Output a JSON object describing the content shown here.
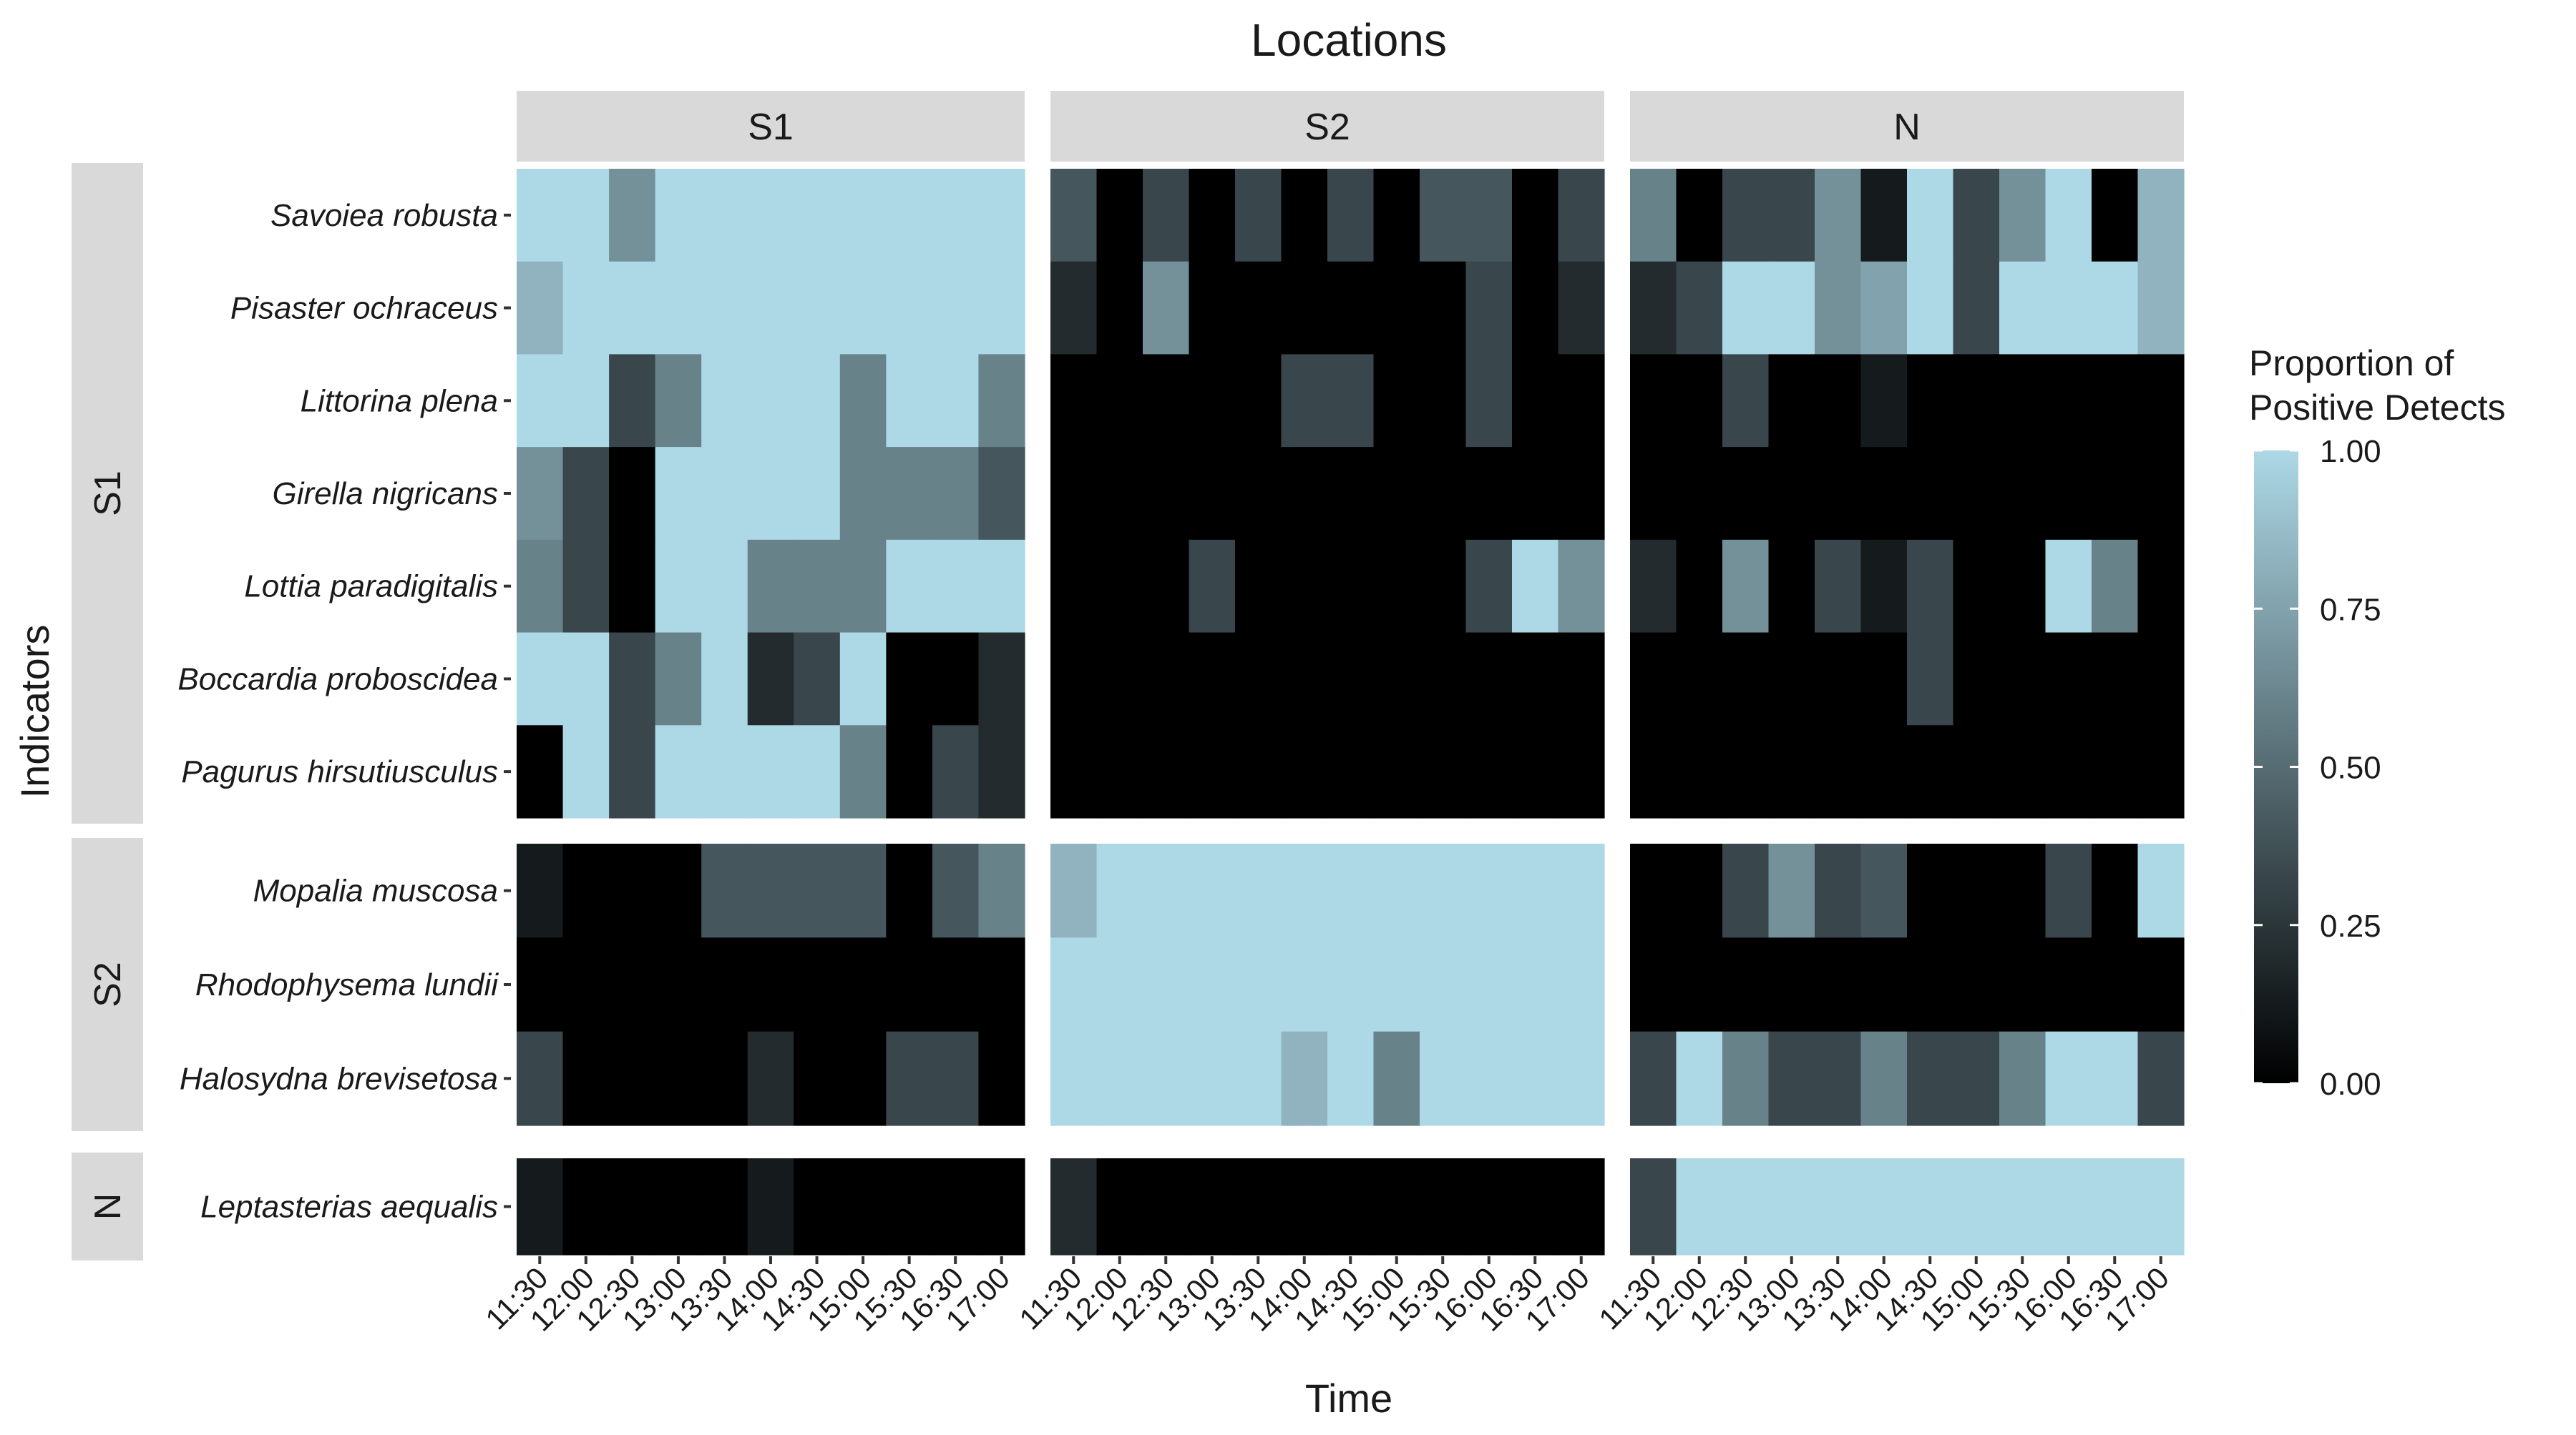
{
  "chart_data": {
    "type": "heatmap",
    "title": "Locations",
    "xlabel": "Time",
    "ylabel": "Indicators",
    "legend": {
      "title_lines": [
        "Proportion of",
        "Positive Detects"
      ],
      "range": [
        0,
        1
      ],
      "ticks": [
        "0.00",
        "0.25",
        "0.50",
        "0.75",
        "1.00"
      ],
      "position": "right",
      "low_color": "#000000",
      "high_color": "#add8e6"
    },
    "x_ticks": [
      "11:30",
      "12:00",
      "12:30",
      "13:00",
      "13:30",
      "14:00",
      "14:30",
      "15:00",
      "15:30",
      "16:00",
      "16:30",
      "17:00"
    ],
    "columns": [
      "S1",
      "S2",
      "N"
    ],
    "row_groups": [
      {
        "name": "S1",
        "rows": [
          "Savoiea robusta",
          "Pisaster ochraceus",
          "Littorina plena",
          "Girella nigricans",
          "Lottia paradigitalis",
          "Boccardia proboscidea",
          "Pagurus hirsutiusculus"
        ]
      },
      {
        "name": "S2",
        "rows": [
          "Mopalia muscosa",
          "Rhodophysema lundii",
          "Halosydna brevisetosa"
        ]
      },
      {
        "name": "N",
        "rows": [
          "Leptasterias aequalis"
        ]
      }
    ],
    "values": {
      "S1": {
        "Savoiea robusta": [
          1,
          1,
          0.67,
          1,
          1,
          1,
          1,
          1,
          1,
          1,
          1
        ],
        "Pisaster ochraceus": [
          0.83,
          1,
          1,
          1,
          1,
          1,
          1,
          1,
          1,
          1,
          1
        ],
        "Littorina plena": [
          1,
          1,
          0.33,
          0.6,
          1,
          1,
          1,
          0.6,
          1,
          1,
          0.6
        ],
        "Girella nigricans": [
          0.67,
          0.33,
          0,
          1,
          1,
          1,
          1,
          0.6,
          0.6,
          0.6,
          0.4
        ],
        "Lottia paradigitalis": [
          0.6,
          0.33,
          0,
          1,
          1,
          0.6,
          0.6,
          0.6,
          1,
          1,
          1
        ],
        "Boccardia proboscidea": [
          1,
          1,
          0.33,
          0.6,
          1,
          0.2,
          0.33,
          1,
          0,
          0,
          0.2
        ],
        "Pagurus hirsutiusculus": [
          0,
          1,
          0.33,
          1,
          1,
          1,
          1,
          0.6,
          0,
          0.33,
          0.2
        ],
        "Mopalia muscosa": [
          0.12,
          0,
          0,
          0,
          0.4,
          0.4,
          0.4,
          0.4,
          0,
          0.4,
          0.6
        ],
        "Rhodophysema lundii": [
          0,
          0,
          0,
          0,
          0,
          0,
          0,
          0,
          0,
          0,
          0
        ],
        "Halosydna brevisetosa": [
          0.33,
          0,
          0,
          0,
          0,
          0.2,
          0,
          0,
          0.33,
          0.33,
          0
        ],
        "Leptasterias aequalis": [
          0.12,
          0,
          0,
          0,
          0,
          0.12,
          0,
          0,
          0,
          0,
          0
        ]
      },
      "S2": {
        "Savoiea robusta": [
          0.4,
          0,
          0.33,
          0,
          0.33,
          0,
          0.33,
          0,
          0.4,
          0.4,
          0,
          0.33
        ],
        "Pisaster ochraceus": [
          0.2,
          0,
          0.67,
          0,
          0,
          0,
          0,
          0,
          0,
          0.33,
          0,
          0.2
        ],
        "Littorina plena": [
          0,
          0,
          0,
          0,
          0,
          0.33,
          0.33,
          0,
          0,
          0.33,
          0,
          0
        ],
        "Girella nigricans": [
          0,
          0,
          0,
          0,
          0,
          0,
          0,
          0,
          0,
          0,
          0,
          0
        ],
        "Lottia paradigitalis": [
          0,
          0,
          0,
          0.33,
          0,
          0,
          0,
          0,
          0,
          0.33,
          1,
          0.67
        ],
        "Boccardia proboscidea": [
          0,
          0,
          0,
          0,
          0,
          0,
          0,
          0,
          0,
          0,
          0,
          0
        ],
        "Pagurus hirsutiusculus": [
          0,
          0,
          0,
          0,
          0,
          0,
          0,
          0,
          0,
          0,
          0,
          0
        ],
        "Mopalia muscosa": [
          0.83,
          1,
          1,
          1,
          1,
          1,
          1,
          1,
          1,
          1,
          1,
          1
        ],
        "Rhodophysema lundii": [
          1,
          1,
          1,
          1,
          1,
          1,
          1,
          1,
          1,
          1,
          1,
          1
        ],
        "Halosydna brevisetosa": [
          1,
          1,
          1,
          1,
          1,
          0.83,
          1,
          0.6,
          1,
          1,
          1,
          1
        ],
        "Leptasterias aequalis": [
          0.2,
          0,
          0,
          0,
          0,
          0,
          0,
          0,
          0,
          0,
          0,
          0
        ]
      },
      "N": {
        "Savoiea robusta": [
          0.6,
          0,
          0.33,
          0.33,
          0.67,
          0.12,
          1,
          0.33,
          0.67,
          1,
          0,
          0.83
        ],
        "Pisaster ochraceus": [
          0.2,
          0.33,
          1,
          1,
          0.67,
          0.75,
          1,
          0.33,
          1,
          1,
          1,
          0.83
        ],
        "Littorina plena": [
          0,
          0,
          0.33,
          0,
          0,
          0.12,
          0,
          0,
          0,
          0,
          0,
          0
        ],
        "Girella nigricans": [
          0,
          0,
          0,
          0,
          0,
          0,
          0,
          0,
          0,
          0,
          0,
          0
        ],
        "Lottia paradigitalis": [
          0.2,
          0,
          0.67,
          0,
          0.33,
          0.12,
          0.33,
          0,
          0,
          1,
          0.6,
          0
        ],
        "Boccardia proboscidea": [
          0,
          0,
          0,
          0,
          0,
          0,
          0.33,
          0,
          0,
          0,
          0,
          0
        ],
        "Pagurus hirsutiusculus": [
          0,
          0,
          0,
          0,
          0,
          0,
          0,
          0,
          0,
          0,
          0,
          0
        ],
        "Mopalia muscosa": [
          0,
          0,
          0.33,
          0.67,
          0.33,
          0.4,
          0,
          0,
          0,
          0.33,
          0,
          1
        ],
        "Rhodophysema lundii": [
          0,
          0,
          0,
          0,
          0,
          0,
          0,
          0,
          0,
          0,
          0,
          0
        ],
        "Halosydna brevisetosa": [
          0.33,
          1,
          0.6,
          0.33,
          0.33,
          0.6,
          0.33,
          0.33,
          0.6,
          1,
          1,
          0.33
        ],
        "Leptasterias aequalis": [
          0.33,
          1,
          1,
          1,
          1,
          1,
          1,
          1,
          1,
          1,
          1,
          1
        ]
      }
    },
    "tick_labels": {
      "S1": [
        "11:30",
        "12:00",
        "12:30",
        "13:00",
        "13:30",
        "14:00",
        "14:30",
        "15:00",
        "15:30",
        "16:30",
        "17:00"
      ],
      "S2": [
        "11:30",
        "12:00",
        "12:30",
        "13:00",
        "13:30",
        "14:00",
        "14:30",
        "15:00",
        "15:30",
        "16:00",
        "16:30",
        "17:00"
      ],
      "N": [
        "11:30",
        "12:00",
        "12:30",
        "13:00",
        "13:30",
        "14:00",
        "14:30",
        "15:00",
        "15:30",
        "16:00",
        "16:30",
        "17:00"
      ]
    }
  }
}
